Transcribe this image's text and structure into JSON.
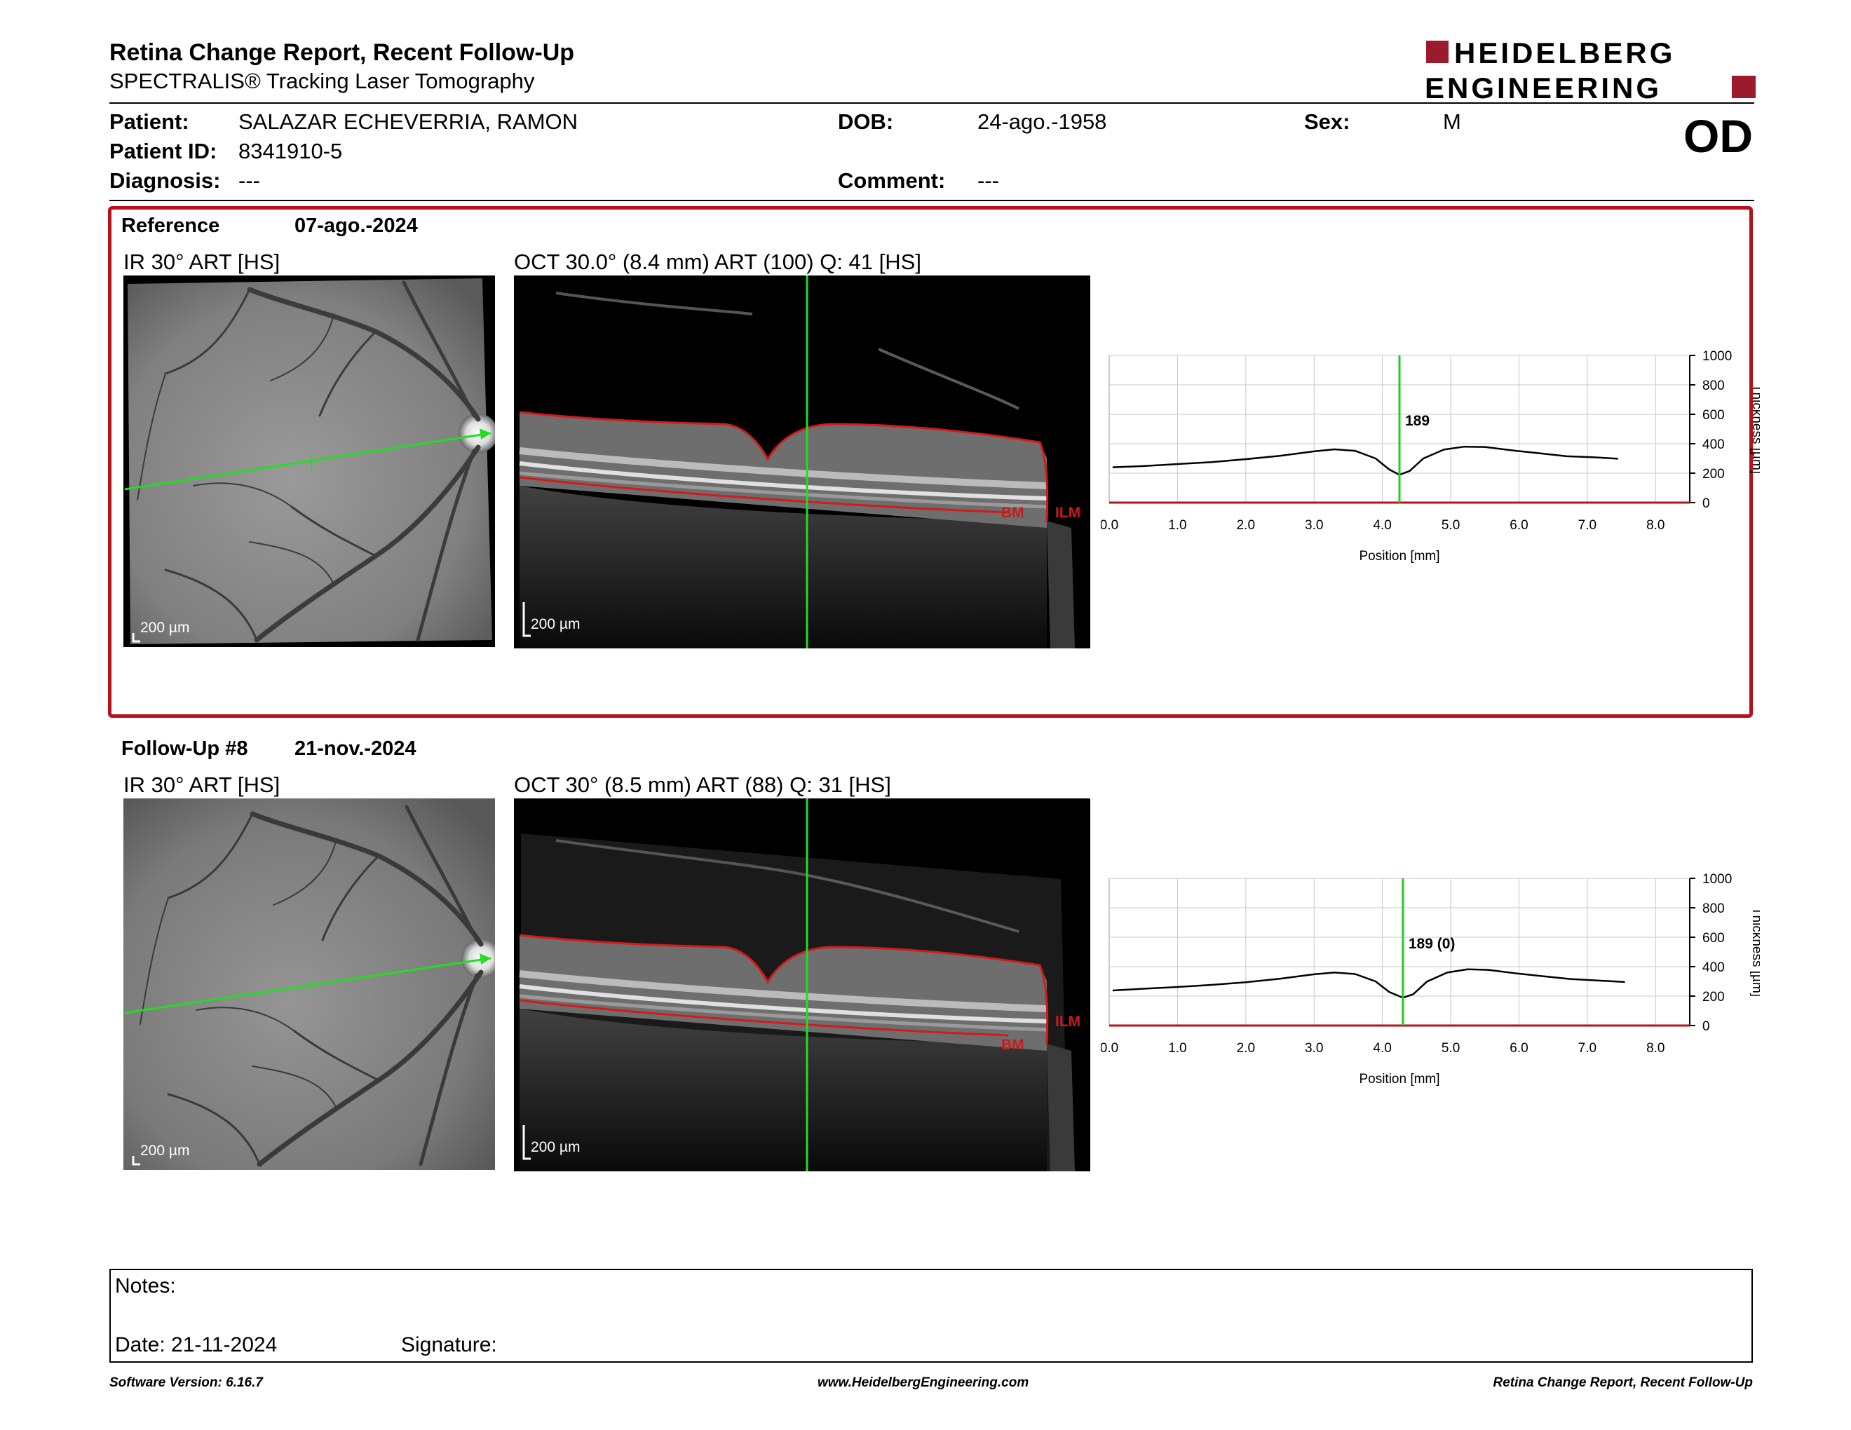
{
  "header": {
    "title": "Retina Change Report, Recent Follow-Up",
    "subtitle": "SPECTRALIS® Tracking Laser Tomography",
    "logo_line1": "HEIDELBERG",
    "logo_line2": "ENGINEERING",
    "brand_color": "#9b1b2c"
  },
  "patient": {
    "patient_label": "Patient:",
    "patient_name": "SALAZAR ECHEVERRIA, RAMON",
    "dob_label": "DOB:",
    "dob": "24-ago.-1958",
    "sex_label": "Sex:",
    "sex": "M",
    "id_label": "Patient ID:",
    "id": "8341910-5",
    "diagnosis_label": "Diagnosis:",
    "diagnosis": "---",
    "comment_label": "Comment:",
    "comment": "---",
    "eye": "OD"
  },
  "reference": {
    "label": "Reference",
    "date": "07-ago.-2024",
    "ir_caption": "IR 30° ART [HS]",
    "oct_caption": "OCT 30.0° (8.4 mm) ART (100) Q: 41 [HS]",
    "scale_text": "200 µm",
    "oct_labels": {
      "bm": "BM",
      "ilm": "ILM"
    },
    "box_color": "#b5121b"
  },
  "followup": {
    "label": "Follow-Up #8",
    "date": "21-nov.-2024",
    "ir_caption": "IR 30° ART [HS]",
    "oct_caption": "OCT 30° (8.5 mm) ART (88) Q: 31 [HS]",
    "scale_text": "200 µm",
    "oct_labels": {
      "bm": "BM",
      "ilm": "ILM"
    }
  },
  "chart_data": [
    {
      "type": "line",
      "title": "",
      "xlabel": "Position [mm]",
      "ylabel": "Thickness [µm]",
      "xlim": [
        0,
        8.5
      ],
      "ylim": [
        0,
        1000
      ],
      "x_ticks": [
        "0.0",
        "1.0",
        "2.0",
        "3.0",
        "4.0",
        "5.0",
        "6.0",
        "7.0",
        "8.0"
      ],
      "y_ticks": [
        "0",
        "200",
        "400",
        "600",
        "800",
        "1000"
      ],
      "grid": true,
      "marker_x": 4.25,
      "marker_label": "189",
      "marker_color": "#22cc22",
      "series": [
        {
          "x": [
            0.05,
            0.5,
            1.0,
            1.5,
            2.0,
            2.5,
            3.0,
            3.3,
            3.6,
            3.9,
            4.1,
            4.25,
            4.4,
            4.6,
            4.9,
            5.2,
            5.5,
            5.9,
            6.3,
            6.7,
            7.1,
            7.45
          ],
          "y": [
            240,
            248,
            262,
            275,
            295,
            318,
            348,
            362,
            352,
            300,
            225,
            189,
            215,
            300,
            360,
            380,
            378,
            355,
            335,
            315,
            308,
            298
          ]
        }
      ]
    },
    {
      "type": "line",
      "title": "",
      "xlabel": "Position [mm]",
      "ylabel": "Thickness [µm]",
      "xlim": [
        0,
        8.5
      ],
      "ylim": [
        0,
        1000
      ],
      "x_ticks": [
        "0.0",
        "1.0",
        "2.0",
        "3.0",
        "4.0",
        "5.0",
        "6.0",
        "7.0",
        "8.0"
      ],
      "y_ticks": [
        "0",
        "200",
        "400",
        "600",
        "800",
        "1000"
      ],
      "grid": true,
      "marker_x": 4.3,
      "marker_label": "189 (0)",
      "marker_color": "#22cc22",
      "series": [
        {
          "x": [
            0.05,
            0.5,
            1.0,
            1.5,
            2.0,
            2.5,
            3.0,
            3.3,
            3.6,
            3.9,
            4.1,
            4.3,
            4.45,
            4.65,
            4.95,
            5.25,
            5.55,
            5.95,
            6.35,
            6.75,
            7.15,
            7.55
          ],
          "y": [
            238,
            250,
            262,
            276,
            294,
            318,
            348,
            360,
            350,
            300,
            228,
            189,
            212,
            298,
            360,
            382,
            378,
            355,
            335,
            316,
            306,
            296
          ]
        }
      ]
    }
  ],
  "notes": {
    "notes_label": "Notes:",
    "date_text": "Date: 21-11-2024",
    "signature_label": "Signature:"
  },
  "footer": {
    "left": "Software Version: 6.16.7",
    "center": "www.HeidelbergEngineering.com",
    "right": "Retina Change Report, Recent Follow-Up"
  }
}
